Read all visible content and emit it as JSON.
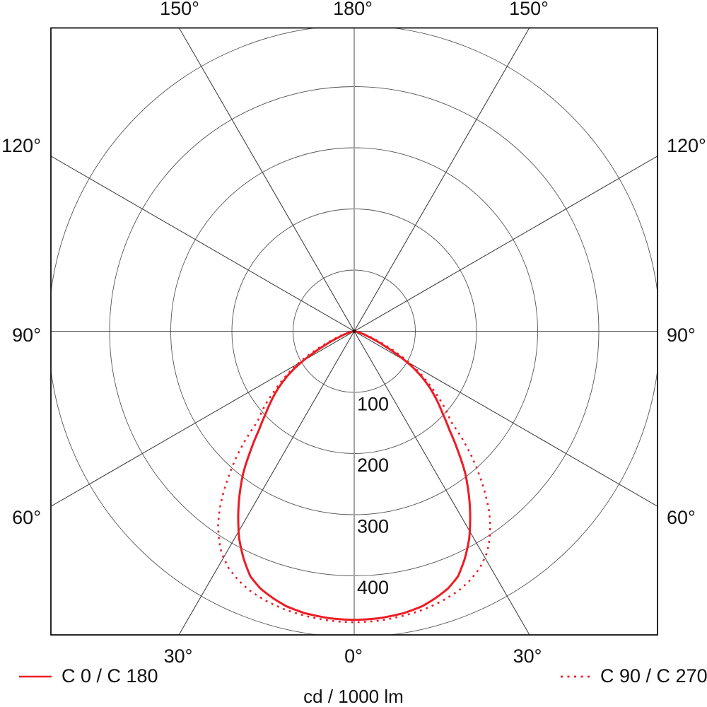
{
  "unit_label": "cd / 1000 lm",
  "legend": [
    {
      "label": "C 0 / C 180",
      "style": "solid"
    },
    {
      "label": "C 90 / C 270",
      "style": "dotted"
    }
  ],
  "colors": {
    "curve_red": "#ed1c24",
    "grid_line": "#444444",
    "ring_line": "#555555",
    "frame": "#111111",
    "vertical_axis": "#a3a3a3",
    "text": "#111111"
  },
  "chart_data": {
    "type": "line",
    "subtype": "polar-photometric-intensity",
    "title": "",
    "units_label": "cd / 1000 lm",
    "radial_axis": {
      "rings_cd": [
        100,
        200,
        300,
        400,
        500
      ],
      "ring_tick_labels": [
        "100",
        "200",
        "300",
        "400"
      ],
      "max_cd": 500
    },
    "angle_step_deg": 30,
    "angle_labels": {
      "top": [
        "150°",
        "180°",
        "150°"
      ],
      "left": [
        "120°",
        "90°",
        "60°"
      ],
      "right": [
        "120°",
        "90°",
        "60°"
      ],
      "bottom": [
        "30°",
        "0°",
        "30°"
      ]
    },
    "legend_position": "bottom",
    "grid": true,
    "series": [
      {
        "name": "C 0 / C 180",
        "style": "solid",
        "color": "#ed1c24",
        "points_gamma_cd": [
          [
            -90,
            0
          ],
          [
            -83,
            2
          ],
          [
            -78,
            5
          ],
          [
            -74,
            11
          ],
          [
            -70,
            22
          ],
          [
            -67,
            36
          ],
          [
            -64,
            56
          ],
          [
            -62,
            76
          ],
          [
            -60,
            96
          ],
          [
            -58,
            116
          ],
          [
            -56,
            133
          ],
          [
            -53,
            156
          ],
          [
            -50,
            177
          ],
          [
            -47,
            198
          ],
          [
            -44,
            224
          ],
          [
            -41,
            258
          ],
          [
            -38,
            295
          ],
          [
            -35,
            327
          ],
          [
            -32,
            358
          ],
          [
            -29,
            388
          ],
          [
            -26,
            413
          ],
          [
            -23,
            435
          ],
          [
            -20,
            448
          ],
          [
            -17,
            456
          ],
          [
            -14,
            463
          ],
          [
            -10,
            468
          ],
          [
            -5,
            471
          ],
          [
            0,
            472
          ],
          [
            5,
            471
          ],
          [
            10,
            468
          ],
          [
            14,
            463
          ],
          [
            17,
            456
          ],
          [
            20,
            448
          ],
          [
            23,
            435
          ],
          [
            26,
            413
          ],
          [
            29,
            388
          ],
          [
            32,
            358
          ],
          [
            35,
            327
          ],
          [
            38,
            295
          ],
          [
            41,
            258
          ],
          [
            44,
            224
          ],
          [
            47,
            198
          ],
          [
            50,
            177
          ],
          [
            53,
            156
          ],
          [
            56,
            133
          ],
          [
            58,
            116
          ],
          [
            60,
            96
          ],
          [
            62,
            76
          ],
          [
            64,
            56
          ],
          [
            67,
            36
          ],
          [
            70,
            22
          ],
          [
            74,
            11
          ],
          [
            78,
            5
          ],
          [
            83,
            2
          ],
          [
            90,
            0
          ]
        ]
      },
      {
        "name": "C 90 / C 270",
        "style": "dotted",
        "color": "#ed1c24",
        "points_gamma_cd": [
          [
            -90,
            0
          ],
          [
            -84,
            2
          ],
          [
            -79,
            5
          ],
          [
            -75,
            12
          ],
          [
            -71,
            25
          ],
          [
            -68,
            40
          ],
          [
            -65,
            62
          ],
          [
            -62,
            88
          ],
          [
            -59,
            115
          ],
          [
            -56,
            140
          ],
          [
            -53,
            165
          ],
          [
            -50,
            192
          ],
          [
            -47,
            216
          ],
          [
            -45,
            252
          ],
          [
            -43,
            284
          ],
          [
            -41,
            312
          ],
          [
            -39,
            340
          ],
          [
            -37,
            366
          ],
          [
            -35,
            388
          ],
          [
            -33,
            406
          ],
          [
            -31,
            422
          ],
          [
            -28,
            438
          ],
          [
            -25,
            449
          ],
          [
            -22,
            457
          ],
          [
            -18,
            464
          ],
          [
            -14,
            469
          ],
          [
            -10,
            472
          ],
          [
            -5,
            475
          ],
          [
            0,
            476
          ],
          [
            5,
            475
          ],
          [
            10,
            472
          ],
          [
            14,
            469
          ],
          [
            18,
            464
          ],
          [
            22,
            457
          ],
          [
            25,
            449
          ],
          [
            28,
            438
          ],
          [
            31,
            422
          ],
          [
            33,
            406
          ],
          [
            35,
            388
          ],
          [
            37,
            366
          ],
          [
            39,
            340
          ],
          [
            41,
            312
          ],
          [
            43,
            284
          ],
          [
            45,
            252
          ],
          [
            47,
            216
          ],
          [
            50,
            192
          ],
          [
            53,
            165
          ],
          [
            56,
            140
          ],
          [
            59,
            115
          ],
          [
            62,
            88
          ],
          [
            65,
            62
          ],
          [
            68,
            40
          ],
          [
            71,
            25
          ],
          [
            75,
            12
          ],
          [
            79,
            5
          ],
          [
            84,
            2
          ],
          [
            90,
            0
          ]
        ]
      }
    ]
  }
}
